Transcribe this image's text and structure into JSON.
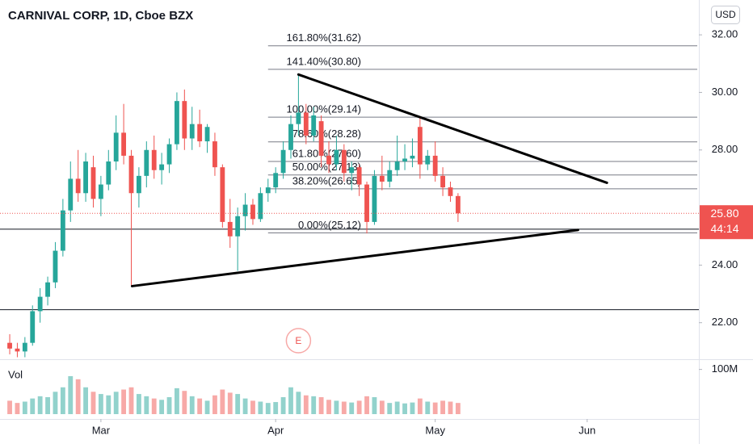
{
  "chart_data": {
    "type": "candlestick",
    "title": "CARNIVAL CORP, 1D, Cboe BZX",
    "currency": "USD",
    "volume_label": "Vol",
    "earnings_marker": "E",
    "up_color": "#26a69a",
    "down_color": "#ef5350",
    "grid": false,
    "x": [
      0,
      1,
      2,
      3,
      4,
      5,
      6,
      7,
      8,
      9,
      10,
      11,
      12,
      13,
      14,
      15,
      16,
      17,
      18,
      19,
      20,
      21,
      22,
      23,
      24,
      25,
      26,
      27,
      28,
      29,
      30,
      31,
      32,
      33,
      34,
      35,
      36,
      37,
      38,
      39,
      40,
      41,
      42,
      43,
      44,
      45,
      46,
      47,
      48,
      49,
      50,
      51,
      52,
      53,
      54,
      55,
      56,
      57,
      58,
      59
    ],
    "open": [
      21.3,
      21.1,
      21.0,
      21.3,
      22.4,
      22.9,
      23.4,
      24.5,
      25.9,
      27.0,
      26.5,
      27.4,
      26.3,
      26.8,
      27.6,
      28.6,
      27.8,
      26.5,
      27.1,
      28.0,
      27.3,
      27.5,
      28.2,
      29.7,
      28.4,
      28.9,
      28.3,
      28.3,
      27.4,
      25.5,
      25.0,
      25.7,
      26.1,
      25.6,
      26.5,
      26.7,
      27.2,
      28.0,
      28.9,
      29.3,
      28.5,
      29.0,
      27.8,
      27.5,
      28.0,
      27.2,
      27.4,
      26.8,
      25.5,
      27.1,
      26.9,
      27.3,
      27.6,
      27.7,
      28.8,
      27.5,
      27.8,
      27.1,
      26.7,
      26.4
    ],
    "high": [
      21.6,
      21.3,
      21.5,
      22.6,
      23.2,
      23.6,
      24.8,
      26.3,
      27.6,
      28.0,
      27.9,
      27.8,
      27.1,
      28.0,
      29.2,
      29.6,
      28.0,
      27.4,
      28.3,
      28.5,
      27.9,
      28.4,
      30.0,
      30.1,
      29.5,
      29.4,
      28.9,
      28.6,
      27.5,
      26.3,
      26.0,
      26.5,
      26.3,
      26.7,
      27.0,
      27.4,
      28.3,
      29.2,
      30.6,
      29.6,
      29.5,
      29.2,
      28.3,
      28.5,
      28.2,
      27.6,
      27.5,
      26.9,
      27.3,
      27.8,
      27.6,
      28.5,
      28.2,
      28.4,
      29.1,
      28.0,
      28.3,
      27.4,
      26.9,
      26.5
    ],
    "low": [
      20.9,
      20.8,
      20.8,
      21.2,
      22.0,
      22.6,
      23.2,
      24.3,
      25.5,
      26.2,
      26.2,
      26.0,
      25.7,
      26.6,
      27.3,
      27.5,
      23.3,
      26.0,
      26.7,
      27.0,
      26.8,
      27.2,
      28.0,
      28.0,
      28.0,
      28.1,
      27.9,
      27.1,
      25.3,
      24.6,
      23.8,
      25.2,
      25.4,
      25.5,
      26.2,
      26.5,
      27.0,
      27.7,
      28.5,
      28.2,
      28.3,
      27.4,
      27.2,
      27.3,
      26.9,
      26.6,
      26.4,
      25.1,
      25.4,
      26.6,
      26.7,
      27.1,
      27.3,
      27.4,
      27.0,
      27.3,
      26.9,
      26.4,
      26.2,
      25.5
    ],
    "close": [
      21.1,
      21.0,
      21.3,
      22.4,
      22.9,
      23.4,
      24.5,
      25.9,
      27.0,
      26.5,
      27.6,
      26.3,
      26.8,
      27.6,
      28.6,
      27.8,
      26.5,
      27.1,
      28.0,
      27.3,
      27.5,
      28.2,
      29.7,
      28.4,
      28.9,
      28.3,
      28.8,
      27.4,
      25.5,
      25.0,
      25.7,
      26.1,
      25.6,
      26.5,
      26.7,
      27.2,
      28.0,
      28.9,
      29.3,
      28.5,
      29.2,
      27.8,
      27.5,
      28.0,
      27.2,
      27.4,
      26.8,
      25.5,
      27.1,
      26.9,
      27.3,
      27.6,
      27.7,
      27.8,
      27.5,
      27.8,
      27.1,
      26.7,
      26.4,
      25.8
    ],
    "volume": [
      30000000,
      25000000,
      28000000,
      35000000,
      40000000,
      38000000,
      50000000,
      60000000,
      85000000,
      78000000,
      60000000,
      50000000,
      45000000,
      42000000,
      50000000,
      55000000,
      60000000,
      45000000,
      40000000,
      35000000,
      32000000,
      38000000,
      58000000,
      52000000,
      40000000,
      35000000,
      30000000,
      42000000,
      55000000,
      48000000,
      45000000,
      35000000,
      30000000,
      28000000,
      25000000,
      27000000,
      38000000,
      60000000,
      50000000,
      42000000,
      40000000,
      38000000,
      32000000,
      30000000,
      28000000,
      26000000,
      30000000,
      40000000,
      38000000,
      30000000,
      25000000,
      28000000,
      24000000,
      26000000,
      35000000,
      28000000,
      26000000,
      30000000,
      28000000,
      25000000
    ],
    "xlim": [
      -1.28,
      90.7
    ],
    "xticks": [
      {
        "value": 12,
        "label": "Mar"
      },
      {
        "value": 35,
        "label": "Apr"
      },
      {
        "value": 56,
        "label": "May"
      },
      {
        "value": 76,
        "label": "Jun"
      }
    ],
    "ylim": [
      20.73,
      33.21
    ],
    "yticks": [
      {
        "value": 32,
        "label": "32.00"
      },
      {
        "value": 30,
        "label": "30.00"
      },
      {
        "value": 28,
        "label": "28.00"
      },
      {
        "value": 24,
        "label": "24.00"
      },
      {
        "value": 22,
        "label": "22.00"
      }
    ],
    "volume_lim": [
      0,
      121000000
    ],
    "volume_ticks": [
      {
        "value": 100000000,
        "label": "100M"
      }
    ],
    "last_price": {
      "value": 25.8,
      "label": "25.80"
    },
    "countdown": "44:14",
    "fib_levels": [
      {
        "label": "161.80%(31.62)",
        "value": 31.62
      },
      {
        "label": "141.40%(30.80)",
        "value": 30.8
      },
      {
        "label": "100.00%(29.14)",
        "value": 29.14
      },
      {
        "label": "78.60%(28.28)",
        "value": 28.28
      },
      {
        "label": "61.80%(27.60)",
        "value": 27.6
      },
      {
        "label": "50.00%(27.13)",
        "value": 27.13
      },
      {
        "label": "38.20%(26.65)",
        "value": 26.65
      },
      {
        "label": "0.00%(25.12)",
        "value": 25.12
      }
    ],
    "hlines": [
      25.25,
      22.45
    ],
    "trendlines": [
      {
        "x": [
          38,
          78.6
        ],
        "y": [
          30.62,
          26.86
        ]
      },
      {
        "x": [
          16.1,
          74.8
        ],
        "y": [
          23.27,
          25.22
        ]
      }
    ]
  }
}
